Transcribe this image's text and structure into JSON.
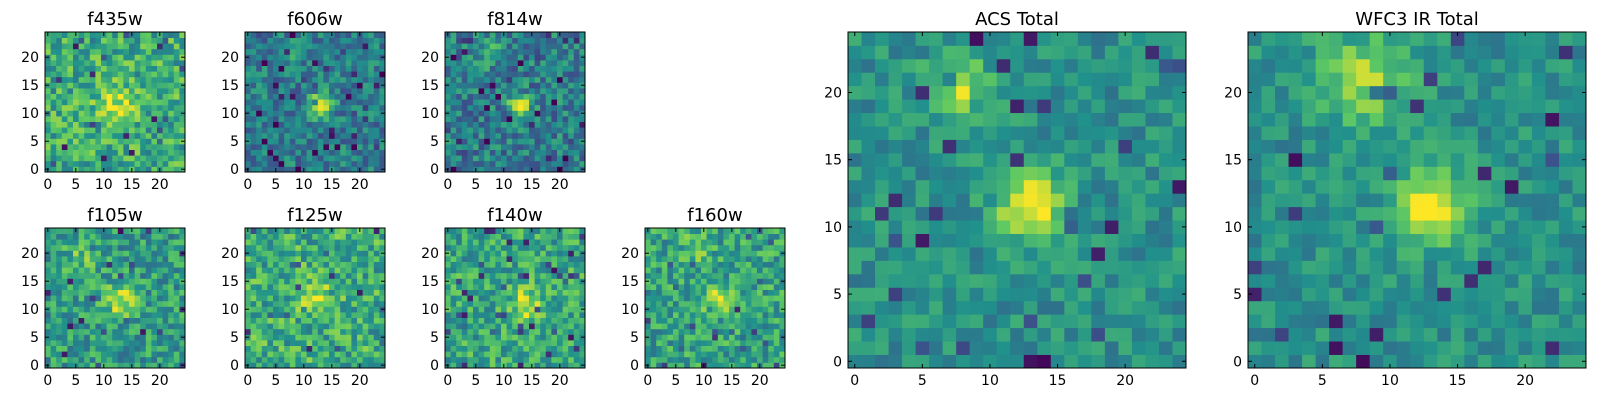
{
  "chart_data": {
    "type": "heatmap",
    "colormap": "viridis",
    "colors": {
      "low": "#440154",
      "mid": "#21918c",
      "high": "#fde725"
    },
    "grid": false,
    "image_size": [
      25,
      25
    ],
    "panels": [
      {
        "id": "f435w",
        "title": "f435w",
        "xticks": [
          "0",
          "5",
          "10",
          "15",
          "20"
        ],
        "yticks": [
          "0",
          "5",
          "10",
          "15",
          "20"
        ],
        "blobs": [
          {
            "x": 12.5,
            "y": 11.5,
            "sigma": 2.4,
            "amp": 0.3
          }
        ],
        "base": 0.62,
        "noise": 0.22,
        "seed": 11
      },
      {
        "id": "f606w",
        "title": "f606w",
        "xticks": [
          "0",
          "5",
          "10",
          "15",
          "20"
        ],
        "yticks": [
          "0",
          "5",
          "10",
          "15",
          "20"
        ],
        "blobs": [
          {
            "x": 13,
            "y": 11.5,
            "sigma": 1.4,
            "amp": 0.55
          },
          {
            "x": 8,
            "y": 21,
            "sigma": 1.4,
            "amp": 0.2
          }
        ],
        "base": 0.42,
        "noise": 0.18,
        "seed": 23
      },
      {
        "id": "f814w",
        "title": "f814w",
        "xticks": [
          "0",
          "5",
          "10",
          "15",
          "20"
        ],
        "yticks": [
          "0",
          "5",
          "10",
          "15",
          "20"
        ],
        "blobs": [
          {
            "x": 13,
            "y": 11.5,
            "sigma": 1.4,
            "amp": 0.55
          },
          {
            "x": 7.5,
            "y": 21,
            "sigma": 1.5,
            "amp": 0.3
          }
        ],
        "base": 0.42,
        "noise": 0.2,
        "seed": 37
      },
      {
        "id": "f105w",
        "title": "f105w",
        "xticks": [
          "0",
          "5",
          "10",
          "15",
          "20"
        ],
        "yticks": [
          "0",
          "5",
          "10",
          "15",
          "20"
        ],
        "blobs": [
          {
            "x": 13,
            "y": 11.5,
            "sigma": 2.0,
            "amp": 0.35
          },
          {
            "x": 6,
            "y": 19,
            "sigma": 2.2,
            "amp": 0.15
          }
        ],
        "base": 0.55,
        "noise": 0.2,
        "seed": 41
      },
      {
        "id": "f125w",
        "title": "f125w",
        "xticks": [
          "0",
          "5",
          "10",
          "15",
          "20"
        ],
        "yticks": [
          "0",
          "5",
          "10",
          "15",
          "20"
        ],
        "blobs": [
          {
            "x": 12.5,
            "y": 12,
            "sigma": 2.0,
            "amp": 0.3
          }
        ],
        "base": 0.62,
        "noise": 0.22,
        "seed": 53
      },
      {
        "id": "f140w",
        "title": "f140w",
        "xticks": [
          "0",
          "5",
          "10",
          "15",
          "20"
        ],
        "yticks": [
          "0",
          "5",
          "10",
          "15",
          "20"
        ],
        "blobs": [
          {
            "x": 14,
            "y": 11,
            "sigma": 1.8,
            "amp": 0.35
          }
        ],
        "base": 0.6,
        "noise": 0.2,
        "seed": 67
      },
      {
        "id": "f160w",
        "title": "f160w",
        "xticks": [
          "0",
          "5",
          "10",
          "15",
          "20"
        ],
        "yticks": [
          "0",
          "5",
          "10",
          "15",
          "20"
        ],
        "blobs": [
          {
            "x": 12.5,
            "y": 11.5,
            "sigma": 1.8,
            "amp": 0.35
          },
          {
            "x": 8,
            "y": 21,
            "sigma": 1.8,
            "amp": 0.2
          }
        ],
        "base": 0.58,
        "noise": 0.2,
        "seed": 79
      },
      {
        "id": "acs-total",
        "title": "ACS Total",
        "xticks": [
          "0",
          "5",
          "10",
          "15",
          "20"
        ],
        "yticks": [
          "0",
          "5",
          "10",
          "15",
          "20"
        ],
        "blobs": [
          {
            "x": 13,
            "y": 11.5,
            "sigma": 1.7,
            "amp": 0.55
          },
          {
            "x": 7.5,
            "y": 20.5,
            "sigma": 1.5,
            "amp": 0.4
          }
        ],
        "base": 0.5,
        "noise": 0.13,
        "seed": 97
      },
      {
        "id": "wfc3-ir-total",
        "title": "WFC3 IR Total",
        "xticks": [
          "0",
          "5",
          "10",
          "15",
          "20"
        ],
        "yticks": [
          "0",
          "5",
          "10",
          "15",
          "20"
        ],
        "blobs": [
          {
            "x": 13,
            "y": 11.5,
            "sigma": 1.9,
            "amp": 0.55
          },
          {
            "x": 8,
            "y": 21,
            "sigma": 2.3,
            "amp": 0.35
          }
        ],
        "base": 0.5,
        "noise": 0.12,
        "seed": 113
      }
    ]
  }
}
